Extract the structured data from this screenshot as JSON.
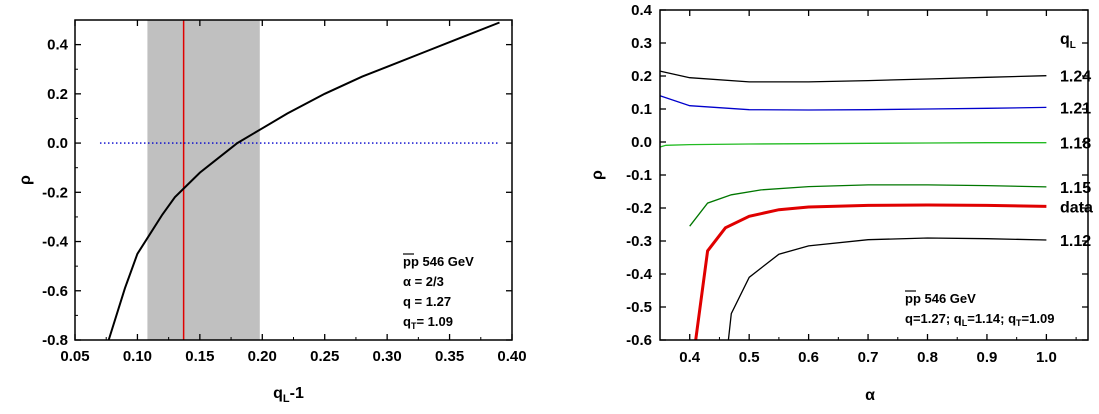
{
  "chart_data": [
    {
      "type": "line",
      "xlabel": "q_L-1",
      "ylabel": "ρ",
      "xlim": [
        0.05,
        0.4
      ],
      "ylim": [
        -0.8,
        0.5
      ],
      "xticks": [
        "0.05",
        "0.10",
        "0.15",
        "0.20",
        "0.25",
        "0.30",
        "0.35",
        "0.40"
      ],
      "yticks": [
        "-0.8",
        "-0.6",
        "-0.4",
        "-0.2",
        "0.0",
        "0.2",
        "0.4"
      ],
      "band": {
        "x_from": 0.108,
        "x_to": 0.198,
        "color": "#c0c0c0"
      },
      "vline": {
        "x": 0.137,
        "color": "#e00000"
      },
      "hline": {
        "y": 0.0,
        "x_from": 0.07,
        "x_to": 0.39,
        "color": "#0000cc",
        "style": "dotted"
      },
      "series": [
        {
          "color": "#000000",
          "x": [
            0.077,
            0.09,
            0.1,
            0.11,
            0.12,
            0.13,
            0.14,
            0.15,
            0.16,
            0.18,
            0.2,
            0.22,
            0.25,
            0.28,
            0.3,
            0.33,
            0.36,
            0.39
          ],
          "y": [
            -0.8,
            -0.59,
            -0.45,
            -0.37,
            -0.29,
            -0.22,
            -0.17,
            -0.12,
            -0.08,
            0.0,
            0.06,
            0.12,
            0.2,
            0.27,
            0.31,
            0.37,
            0.43,
            0.49
          ]
        }
      ],
      "annotation": {
        "line1": "pp 546 GeV",
        "line2": "α = 2/3",
        "line3": "q = 1.27",
        "line4_main": "q",
        "line4_sub": "T",
        "line4_rest": "= 1.09"
      }
    },
    {
      "type": "line",
      "xlabel": "α",
      "ylabel": "ρ",
      "xlim": [
        0.35,
        1.07
      ],
      "ylim": [
        -0.6,
        0.4
      ],
      "xticks": [
        "0.4",
        "0.5",
        "0.6",
        "0.7",
        "0.8",
        "0.9",
        "1.0"
      ],
      "yticks": [
        "-0.6",
        "-0.5",
        "-0.4",
        "-0.3",
        "-0.2",
        "-0.1",
        "0.0",
        "0.1",
        "0.2",
        "0.3",
        "0.4"
      ],
      "legend_title_main": "q",
      "legend_title_sub": "L",
      "series": [
        {
          "name": "1.24",
          "color": "#000000",
          "x": [
            0.35,
            0.4,
            0.5,
            0.6,
            0.7,
            0.8,
            0.9,
            1.0
          ],
          "y": [
            0.215,
            0.195,
            0.182,
            0.182,
            0.186,
            0.191,
            0.196,
            0.201
          ]
        },
        {
          "name": "1.21",
          "color": "#0000cc",
          "x": [
            0.35,
            0.4,
            0.5,
            0.6,
            0.7,
            0.8,
            0.9,
            1.0
          ],
          "y": [
            0.14,
            0.11,
            0.098,
            0.097,
            0.098,
            0.1,
            0.102,
            0.105
          ]
        },
        {
          "name": "1.18",
          "color": "#22bb22",
          "x": [
            0.35,
            0.36,
            0.4,
            0.5,
            0.6,
            0.7,
            0.8,
            0.9,
            1.0
          ],
          "y": [
            -0.015,
            -0.01,
            -0.008,
            -0.006,
            -0.005,
            -0.004,
            -0.003,
            -0.002,
            -0.002
          ]
        },
        {
          "name": "1.15",
          "color": "#007700",
          "x": [
            0.4,
            0.43,
            0.47,
            0.52,
            0.6,
            0.7,
            0.8,
            0.9,
            1.0
          ],
          "y": [
            -0.255,
            -0.185,
            -0.16,
            -0.145,
            -0.135,
            -0.13,
            -0.13,
            -0.132,
            -0.136
          ]
        },
        {
          "name": "data",
          "color": "#e00000",
          "x": [
            0.41,
            0.43,
            0.46,
            0.5,
            0.55,
            0.6,
            0.7,
            0.8,
            0.9,
            1.0
          ],
          "y": [
            -0.6,
            -0.33,
            -0.26,
            -0.225,
            -0.205,
            -0.197,
            -0.192,
            -0.191,
            -0.192,
            -0.195
          ]
        },
        {
          "name": "1.12",
          "color": "#000000",
          "x": [
            0.465,
            0.47,
            0.5,
            0.55,
            0.6,
            0.7,
            0.8,
            0.9,
            1.0
          ],
          "y": [
            -0.6,
            -0.52,
            -0.41,
            -0.34,
            -0.315,
            -0.296,
            -0.291,
            -0.293,
            -0.297
          ]
        }
      ],
      "annotation": {
        "line1": "pp 546 GeV",
        "line2": "q=1.27; q_L=1.14; q_T=1.09"
      }
    }
  ]
}
